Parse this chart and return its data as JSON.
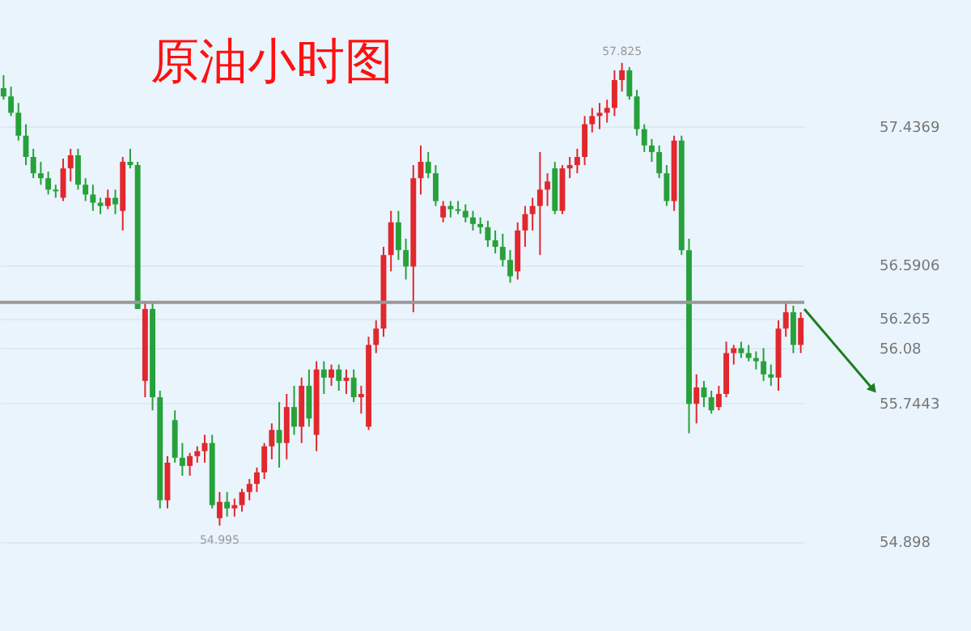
{
  "chart_data": {
    "type": "candlestick",
    "title": "原油小时图",
    "categories": [
      null,
      null,
      null,
      null,
      null,
      null,
      null,
      null,
      null,
      null,
      null,
      null,
      null,
      null,
      null,
      null,
      null,
      null,
      null,
      null,
      null,
      null,
      null,
      null,
      null,
      null,
      null,
      null,
      null,
      null,
      null,
      null,
      null,
      null,
      null,
      null,
      null,
      null,
      null,
      null,
      null,
      null,
      null,
      null,
      null,
      null,
      null,
      null,
      null,
      null,
      null,
      null,
      null,
      null,
      null,
      null,
      null,
      null,
      null,
      null,
      null,
      null,
      null,
      null,
      null,
      null,
      null,
      null,
      null,
      null,
      null,
      null,
      null,
      null,
      null,
      null,
      null,
      null,
      null,
      null,
      null,
      null,
      null,
      null,
      null,
      null,
      null,
      null,
      null,
      null,
      null,
      null,
      null,
      null,
      null,
      null,
      null,
      null,
      null,
      null,
      null,
      null,
      null,
      null,
      null,
      null,
      null,
      null
    ],
    "ohlc": [
      [
        57.67,
        57.75,
        57.6,
        57.62
      ],
      [
        57.62,
        57.68,
        57.5,
        57.52
      ],
      [
        57.52,
        57.58,
        57.35,
        57.38
      ],
      [
        57.38,
        57.45,
        57.2,
        57.25
      ],
      [
        57.25,
        57.3,
        57.12,
        57.15
      ],
      [
        57.15,
        57.22,
        57.08,
        57.12
      ],
      [
        57.12,
        57.16,
        57.02,
        57.05
      ],
      [
        57.05,
        57.08,
        57.0,
        57.04
      ],
      [
        57.0,
        57.24,
        56.98,
        57.18
      ],
      [
        57.18,
        57.3,
        57.1,
        57.26
      ],
      [
        57.26,
        57.3,
        57.05,
        57.08
      ],
      [
        57.08,
        57.12,
        56.98,
        57.02
      ],
      [
        57.02,
        57.08,
        56.92,
        56.97
      ],
      [
        56.97,
        57.0,
        56.9,
        56.95
      ],
      [
        56.95,
        57.05,
        56.93,
        57.0
      ],
      [
        57.0,
        57.05,
        56.9,
        56.96
      ],
      [
        56.92,
        57.25,
        56.8,
        57.22
      ],
      [
        57.22,
        57.3,
        57.18,
        57.2
      ],
      [
        57.2,
        57.22,
        56.32,
        56.32
      ],
      [
        55.88,
        56.36,
        55.78,
        56.32
      ],
      [
        56.32,
        56.36,
        55.7,
        55.78
      ],
      [
        55.78,
        55.82,
        55.1,
        55.15
      ],
      [
        55.15,
        55.42,
        55.1,
        55.38
      ],
      [
        55.64,
        55.7,
        55.38,
        55.41
      ],
      [
        55.41,
        55.5,
        55.3,
        55.36
      ],
      [
        55.36,
        55.44,
        55.3,
        55.42
      ],
      [
        55.42,
        55.48,
        55.38,
        55.45
      ],
      [
        55.45,
        55.55,
        55.38,
        55.5
      ],
      [
        55.5,
        55.55,
        55.1,
        55.12
      ],
      [
        55.04,
        55.2,
        54.995,
        55.14
      ],
      [
        55.14,
        55.2,
        55.05,
        55.1
      ],
      [
        55.1,
        55.16,
        55.05,
        55.12
      ],
      [
        55.12,
        55.22,
        55.08,
        55.2
      ],
      [
        55.2,
        55.28,
        55.15,
        55.25
      ],
      [
        55.25,
        55.35,
        55.2,
        55.32
      ],
      [
        55.32,
        55.5,
        55.28,
        55.48
      ],
      [
        55.48,
        55.62,
        55.4,
        55.58
      ],
      [
        55.58,
        55.75,
        55.35,
        55.5
      ],
      [
        55.5,
        55.8,
        55.4,
        55.72
      ],
      [
        55.72,
        55.85,
        55.55,
        55.6
      ],
      [
        55.6,
        55.9,
        55.5,
        55.85
      ],
      [
        55.85,
        55.95,
        55.6,
        55.65
      ],
      [
        55.55,
        56.0,
        55.45,
        55.95
      ],
      [
        55.95,
        56.0,
        55.8,
        55.9
      ],
      [
        55.9,
        55.98,
        55.85,
        55.95
      ],
      [
        55.95,
        55.98,
        55.82,
        55.88
      ],
      [
        55.88,
        55.95,
        55.8,
        55.9
      ],
      [
        55.9,
        55.95,
        55.75,
        55.78
      ],
      [
        55.78,
        55.85,
        55.68,
        55.8
      ],
      [
        55.6,
        56.15,
        55.58,
        56.1
      ],
      [
        56.1,
        56.25,
        56.05,
        56.2
      ],
      [
        56.2,
        56.7,
        56.15,
        56.65
      ],
      [
        56.65,
        56.92,
        56.55,
        56.85
      ],
      [
        56.85,
        56.92,
        56.62,
        56.68
      ],
      [
        56.68,
        56.75,
        56.5,
        56.58
      ],
      [
        56.58,
        57.2,
        56.3,
        57.12
      ],
      [
        57.12,
        57.32,
        57.02,
        57.22
      ],
      [
        57.22,
        57.28,
        57.12,
        57.15
      ],
      [
        57.15,
        57.2,
        56.95,
        56.98
      ],
      [
        56.88,
        56.98,
        56.85,
        56.95
      ],
      [
        56.95,
        56.98,
        56.88,
        56.93
      ],
      [
        56.93,
        56.98,
        56.9,
        56.92
      ],
      [
        56.92,
        56.96,
        56.85,
        56.88
      ],
      [
        56.88,
        56.92,
        56.8,
        56.84
      ],
      [
        56.84,
        56.88,
        56.78,
        56.82
      ],
      [
        56.82,
        56.86,
        56.7,
        56.74
      ],
      [
        56.74,
        56.8,
        56.66,
        56.7
      ],
      [
        56.7,
        56.78,
        56.58,
        56.62
      ],
      [
        56.62,
        56.68,
        56.48,
        56.52
      ],
      [
        56.55,
        56.85,
        56.5,
        56.8
      ],
      [
        56.8,
        56.95,
        56.7,
        56.9
      ],
      [
        56.9,
        57.0,
        56.8,
        56.95
      ],
      [
        56.95,
        57.28,
        56.65,
        57.05
      ],
      [
        57.05,
        57.15,
        56.95,
        57.1
      ],
      [
        57.18,
        57.22,
        56.9,
        56.92
      ],
      [
        56.92,
        57.2,
        56.9,
        57.18
      ],
      [
        57.18,
        57.25,
        57.12,
        57.2
      ],
      [
        57.2,
        57.3,
        57.15,
        57.25
      ],
      [
        57.25,
        57.5,
        57.2,
        57.45
      ],
      [
        57.45,
        57.55,
        57.4,
        57.5
      ],
      [
        57.5,
        57.58,
        57.42,
        57.52
      ],
      [
        57.52,
        57.6,
        57.46,
        57.55
      ],
      [
        57.55,
        57.78,
        57.5,
        57.72
      ],
      [
        57.72,
        57.825,
        57.65,
        57.78
      ],
      [
        57.78,
        57.8,
        57.6,
        57.62
      ],
      [
        57.62,
        57.66,
        57.38,
        57.42
      ],
      [
        57.42,
        57.45,
        57.28,
        57.32
      ],
      [
        57.32,
        57.36,
        57.22,
        57.28
      ],
      [
        57.28,
        57.32,
        57.12,
        57.15
      ],
      [
        57.15,
        57.2,
        56.95,
        56.98
      ],
      [
        56.98,
        57.38,
        56.92,
        57.35
      ],
      [
        57.35,
        57.38,
        56.65,
        56.68
      ],
      [
        56.68,
        56.75,
        55.56,
        55.74
      ],
      [
        55.74,
        55.92,
        55.62,
        55.84
      ],
      [
        55.84,
        55.88,
        55.72,
        55.78
      ],
      [
        55.78,
        55.82,
        55.68,
        55.7
      ],
      [
        55.72,
        55.85,
        55.7,
        55.8
      ],
      [
        55.8,
        56.12,
        55.78,
        56.05
      ],
      [
        56.05,
        56.1,
        55.98,
        56.08
      ],
      [
        56.08,
        56.12,
        56.02,
        56.05
      ],
      [
        56.05,
        56.1,
        56.0,
        56.02
      ],
      [
        56.02,
        56.06,
        55.95,
        56.0
      ],
      [
        56.0,
        56.08,
        55.88,
        55.92
      ],
      [
        55.92,
        55.98,
        55.85,
        55.9
      ],
      [
        55.9,
        56.25,
        55.82,
        56.2
      ],
      [
        56.2,
        56.36,
        56.15,
        56.3
      ],
      [
        56.3,
        56.34,
        56.05,
        56.1
      ],
      [
        56.1,
        56.3,
        56.05,
        56.265
      ]
    ],
    "colors": [
      "#27a13a",
      "#27a13a",
      "#27a13a",
      "#27a13a",
      "#27a13a",
      "#27a13a",
      "#27a13a",
      "#27a13a",
      "#e0282e",
      "#e0282e",
      "#27a13a",
      "#27a13a",
      "#27a13a",
      "#27a13a",
      "#e0282e",
      "#27a13a",
      "#e0282e",
      "#27a13a",
      "#27a13a",
      "#e0282e",
      "#27a13a",
      "#27a13a",
      "#e0282e",
      "#27a13a",
      "#27a13a",
      "#e0282e",
      "#e0282e",
      "#e0282e",
      "#27a13a",
      "#e0282e",
      "#27a13a",
      "#e0282e",
      "#e0282e",
      "#e0282e",
      "#e0282e",
      "#e0282e",
      "#e0282e",
      "#27a13a",
      "#e0282e",
      "#27a13a",
      "#e0282e",
      "#27a13a",
      "#e0282e",
      "#27a13a",
      "#e0282e",
      "#27a13a",
      "#e0282e",
      "#27a13a",
      "#e0282e",
      "#e0282e",
      "#e0282e",
      "#e0282e",
      "#e0282e",
      "#27a13a",
      "#27a13a",
      "#e0282e",
      "#e0282e",
      "#27a13a",
      "#27a13a",
      "#e0282e",
      "#27a13a",
      "#27a13a",
      "#27a13a",
      "#27a13a",
      "#27a13a",
      "#27a13a",
      "#27a13a",
      "#27a13a",
      "#27a13a",
      "#e0282e",
      "#e0282e",
      "#e0282e",
      "#e0282e",
      "#e0282e",
      "#27a13a",
      "#e0282e",
      "#e0282e",
      "#e0282e",
      "#e0282e",
      "#e0282e",
      "#e0282e",
      "#e0282e",
      "#e0282e",
      "#e0282e",
      "#27a13a",
      "#27a13a",
      "#27a13a",
      "#27a13a",
      "#27a13a",
      "#27a13a",
      "#e0282e",
      "#27a13a",
      "#27a13a",
      "#e0282e",
      "#27a13a",
      "#27a13a",
      "#e0282e",
      "#e0282e",
      "#e0282e",
      "#27a13a",
      "#27a13a",
      "#27a13a",
      "#27a13a",
      "#27a13a",
      "#e0282e",
      "#e0282e",
      "#27a13a",
      "#e0282e"
    ],
    "ylim": [
      54.36,
      58.2
    ],
    "yticks": [
      57.4369,
      56.5906,
      56.265,
      56.08,
      55.7443,
      54.898
    ],
    "grid": "y",
    "ref_lines": [
      {
        "axis": "y",
        "value": 56.36,
        "color": "#999999"
      }
    ],
    "annotations": [
      {
        "text": "57.825",
        "y": 57.825
      },
      {
        "text": "54.995",
        "y": 54.995
      }
    ]
  }
}
